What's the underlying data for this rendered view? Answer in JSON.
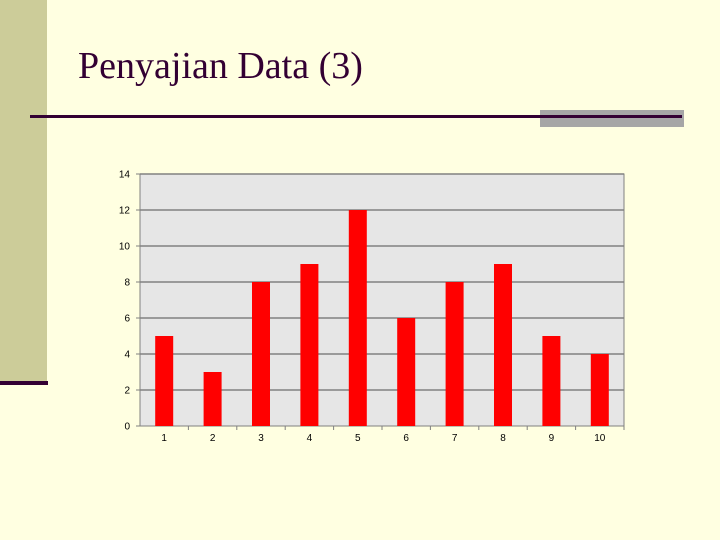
{
  "slide": {
    "title": "Penyajian Data (3)"
  },
  "colors": {
    "background": "#ffffe1",
    "sidebar": "#cccc99",
    "accent": "#330033",
    "plot_area": "#e6e6e6",
    "bar": "#ff0000"
  },
  "chart_data": {
    "type": "bar",
    "categories": [
      "1",
      "2",
      "3",
      "4",
      "5",
      "6",
      "7",
      "8",
      "9",
      "10"
    ],
    "values": [
      5,
      3,
      8,
      9,
      12,
      6,
      8,
      9,
      5,
      4
    ],
    "title": "",
    "xlabel": "",
    "ylabel": "",
    "ylim": [
      0,
      14
    ],
    "yticks": [
      0,
      2,
      4,
      6,
      8,
      10,
      12,
      14
    ],
    "grid": true,
    "legend": "none"
  }
}
